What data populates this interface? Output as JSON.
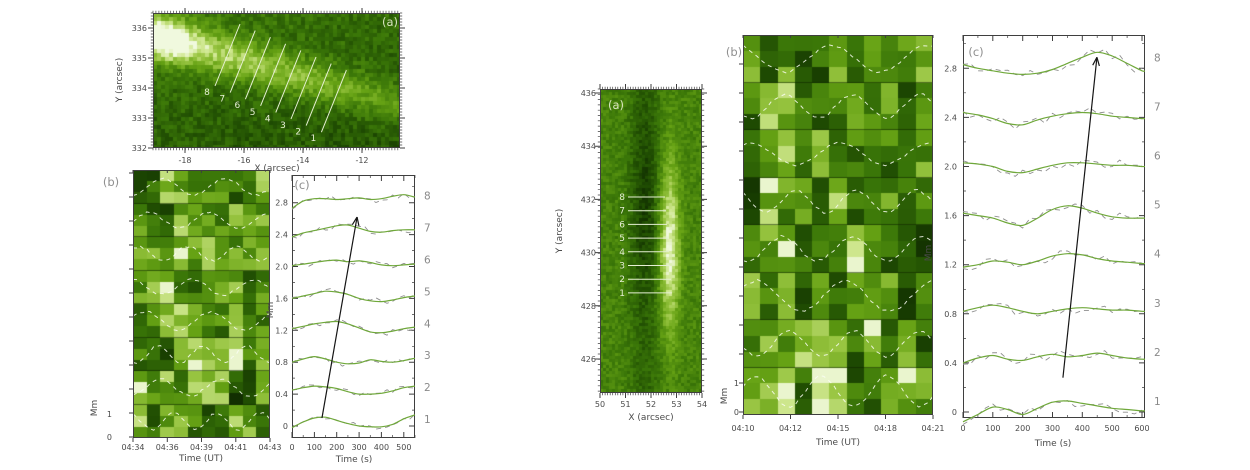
{
  "colors": {
    "background": "#ffffff",
    "axis_text": "#4a4a4a",
    "axis_line": "#3f3f3f",
    "curve_green": "#6fa83a",
    "dashed_gray": "#8f8f8f",
    "arrow_black": "#151515",
    "slit_white": "#e6efd4",
    "panel_letter_light": "#d8e4c0",
    "panel_letter_gray": "#8f8f8f",
    "colormap": [
      [
        0,
        "#0a1f00"
      ],
      [
        0.2,
        "#1e4a02"
      ],
      [
        0.4,
        "#3a7608"
      ],
      [
        0.6,
        "#66a214"
      ],
      [
        0.75,
        "#97c440"
      ],
      [
        0.88,
        "#cfe78f"
      ],
      [
        1,
        "#f7fcee"
      ]
    ]
  },
  "chart_data": [
    {
      "id": "left-event",
      "image_panel": {
        "type": "heatmap",
        "label": "(a)",
        "xlabel": "X (arcsec)",
        "ylabel": "Y (arcsec)",
        "xticks": [
          "-18",
          "-16",
          "-14",
          "-12"
        ],
        "yticks": [
          "336",
          "335",
          "334",
          "333",
          "332"
        ],
        "xrange_arcsec": [
          -19.1,
          -10.7
        ],
        "yrange_arcsec": [
          332,
          336.5
        ],
        "slit_labels": [
          "8",
          "7",
          "6",
          "5",
          "4",
          "3",
          "2",
          "1"
        ],
        "slit_style": "diagonal"
      },
      "time_distance_panel": {
        "type": "heatmap",
        "label": "(b)",
        "xlabel": "Time (UT)",
        "ylabel": "Mm",
        "xticks": [
          "04:34",
          "04:36",
          "04:39",
          "04:41",
          "04:43"
        ],
        "yticks": [
          "1",
          "0"
        ],
        "bands": 8
      },
      "light_curve_panel": {
        "type": "line",
        "label": "(c)",
        "xlabel": "Time (s)",
        "ylabel": "Mm",
        "xticks": [
          "0",
          "100",
          "200",
          "300",
          "400",
          "500"
        ],
        "yticks": [
          "0",
          "0.4",
          "0.8",
          "1.2",
          "1.6",
          "2.0",
          "2.4",
          "2.8"
        ],
        "curve_labels": [
          "1",
          "2",
          "3",
          "4",
          "5",
          "6",
          "7",
          "8"
        ],
        "xlim": [
          0,
          550
        ],
        "ylim": [
          -0.15,
          3.15
        ],
        "baseline_step_mm": 0.4,
        "x_s": [
          0,
          50,
          100,
          150,
          200,
          250,
          300,
          350,
          400,
          450,
          500,
          550
        ],
        "series": [
          {
            "name": "1",
            "baseline": 0.0,
            "delta_mm": [
              -0.02,
              0.05,
              0.1,
              0.11,
              0.07,
              0.03,
              0.0,
              -0.01,
              -0.01,
              0.02,
              0.09,
              0.14
            ]
          },
          {
            "name": "2",
            "baseline": 0.4,
            "delta_mm": [
              0.05,
              0.08,
              0.1,
              0.09,
              0.07,
              0.03,
              0.0,
              0.0,
              0.01,
              0.04,
              0.08,
              0.1
            ]
          },
          {
            "name": "3",
            "baseline": 0.8,
            "delta_mm": [
              0.0,
              0.04,
              0.07,
              0.04,
              0.0,
              -0.02,
              -0.01,
              0.03,
              0.01,
              0.0,
              0.02,
              0.05
            ]
          },
          {
            "name": "4",
            "baseline": 1.2,
            "delta_mm": [
              0.02,
              0.05,
              0.08,
              0.1,
              0.11,
              0.08,
              0.03,
              -0.02,
              -0.03,
              -0.01,
              0.02,
              0.04
            ]
          },
          {
            "name": "5",
            "baseline": 1.6,
            "delta_mm": [
              0.0,
              0.03,
              0.06,
              0.09,
              0.08,
              0.05,
              0.0,
              -0.03,
              -0.04,
              -0.02,
              0.01,
              0.03
            ]
          },
          {
            "name": "6",
            "baseline": 2.0,
            "delta_mm": [
              0.01,
              0.03,
              0.05,
              0.07,
              0.08,
              0.06,
              0.07,
              0.05,
              0.02,
              0.01,
              0.02,
              0.03
            ]
          },
          {
            "name": "7",
            "baseline": 2.4,
            "delta_mm": [
              -0.03,
              0.02,
              0.05,
              0.08,
              0.11,
              0.12,
              0.08,
              0.04,
              0.03,
              0.05,
              0.06,
              0.06
            ]
          },
          {
            "name": "8",
            "baseline": 2.8,
            "delta_mm": [
              -0.07,
              0.02,
              0.05,
              0.05,
              0.04,
              0.05,
              0.06,
              0.04,
              0.05,
              0.08,
              0.1,
              0.07
            ]
          }
        ],
        "arrow": {
          "t1": 134,
          "v1": 0.1,
          "t2": 291,
          "v2": 2.62
        }
      }
    },
    {
      "id": "right-event",
      "image_panel": {
        "type": "heatmap",
        "label": "(a)",
        "xlabel": "X (arcsec)",
        "ylabel": "Y (arcsec)",
        "xticks": [
          "50",
          "51",
          "52",
          "53",
          "54"
        ],
        "yticks": [
          "436",
          "434",
          "432",
          "430",
          "428",
          "426"
        ],
        "xrange_arcsec": [
          50,
          54
        ],
        "yrange_arcsec": [
          425.4,
          436.2
        ],
        "slit_labels": [
          "8",
          "7",
          "6",
          "5",
          "4",
          "3",
          "2",
          "1"
        ],
        "slit_style": "horizontal"
      },
      "time_distance_panel": {
        "type": "heatmap",
        "label": "(b)",
        "xlabel": "Time (UT)",
        "ylabel": "Mm",
        "xticks": [
          "04:10",
          "04:12",
          "04:15",
          "04:18",
          "04:21"
        ],
        "yticks": [
          "1",
          "0"
        ],
        "bands": 8
      },
      "light_curve_panel": {
        "type": "line",
        "label": "(c)",
        "xlabel": "Time (s)",
        "ylabel": "Mm",
        "xticks": [
          "0",
          "100",
          "200",
          "300",
          "400",
          "500",
          "600"
        ],
        "yticks": [
          "0",
          "0.4",
          "0.8",
          "1.2",
          "1.6",
          "2.0",
          "2.4",
          "2.8"
        ],
        "curve_labels": [
          "1",
          "2",
          "3",
          "4",
          "5",
          "6",
          "7",
          "8"
        ],
        "xlim": [
          0,
          610
        ],
        "ylim": [
          -0.15,
          3.07
        ],
        "baseline_step_mm": 0.4,
        "x_s": [
          0,
          50,
          100,
          150,
          200,
          250,
          300,
          350,
          400,
          450,
          500,
          550,
          600
        ],
        "series": [
          {
            "name": "1",
            "baseline": 0.0,
            "delta_mm": [
              -0.08,
              -0.02,
              0.04,
              0.02,
              -0.02,
              0.03,
              0.08,
              0.09,
              0.07,
              0.05,
              0.03,
              0.02,
              0.01
            ]
          },
          {
            "name": "2",
            "baseline": 0.4,
            "delta_mm": [
              0.0,
              0.04,
              0.06,
              0.03,
              0.02,
              0.05,
              0.07,
              0.05,
              0.06,
              0.08,
              0.06,
              0.04,
              0.03
            ]
          },
          {
            "name": "3",
            "baseline": 0.8,
            "delta_mm": [
              0.02,
              0.05,
              0.07,
              0.05,
              0.02,
              0.0,
              0.02,
              0.04,
              0.05,
              0.04,
              0.03,
              0.03,
              0.02
            ]
          },
          {
            "name": "4",
            "baseline": 1.2,
            "delta_mm": [
              -0.02,
              0.0,
              0.03,
              0.02,
              0.0,
              0.03,
              0.07,
              0.09,
              0.08,
              0.05,
              0.03,
              0.02,
              0.01
            ]
          },
          {
            "name": "5",
            "baseline": 1.6,
            "delta_mm": [
              0.02,
              0.0,
              -0.02,
              -0.06,
              -0.08,
              -0.02,
              0.05,
              0.08,
              0.06,
              0.02,
              -0.01,
              -0.02,
              -0.02
            ]
          },
          {
            "name": "6",
            "baseline": 2.0,
            "delta_mm": [
              0.03,
              0.02,
              0.0,
              -0.04,
              -0.05,
              -0.02,
              0.01,
              0.03,
              0.03,
              0.02,
              0.01,
              0.01,
              0.0
            ]
          },
          {
            "name": "7",
            "baseline": 2.4,
            "delta_mm": [
              0.04,
              0.02,
              -0.01,
              -0.05,
              -0.06,
              -0.02,
              0.01,
              0.03,
              0.04,
              0.03,
              0.01,
              0.0,
              -0.01
            ]
          },
          {
            "name": "8",
            "baseline": 2.8,
            "delta_mm": [
              0.03,
              0.0,
              -0.02,
              -0.04,
              -0.05,
              -0.04,
              -0.01,
              0.04,
              0.09,
              0.13,
              0.1,
              0.04,
              -0.02
            ]
          }
        ],
        "arrow": {
          "t1": 335,
          "v1": 0.28,
          "t2": 449,
          "v2": 2.89
        }
      }
    }
  ]
}
